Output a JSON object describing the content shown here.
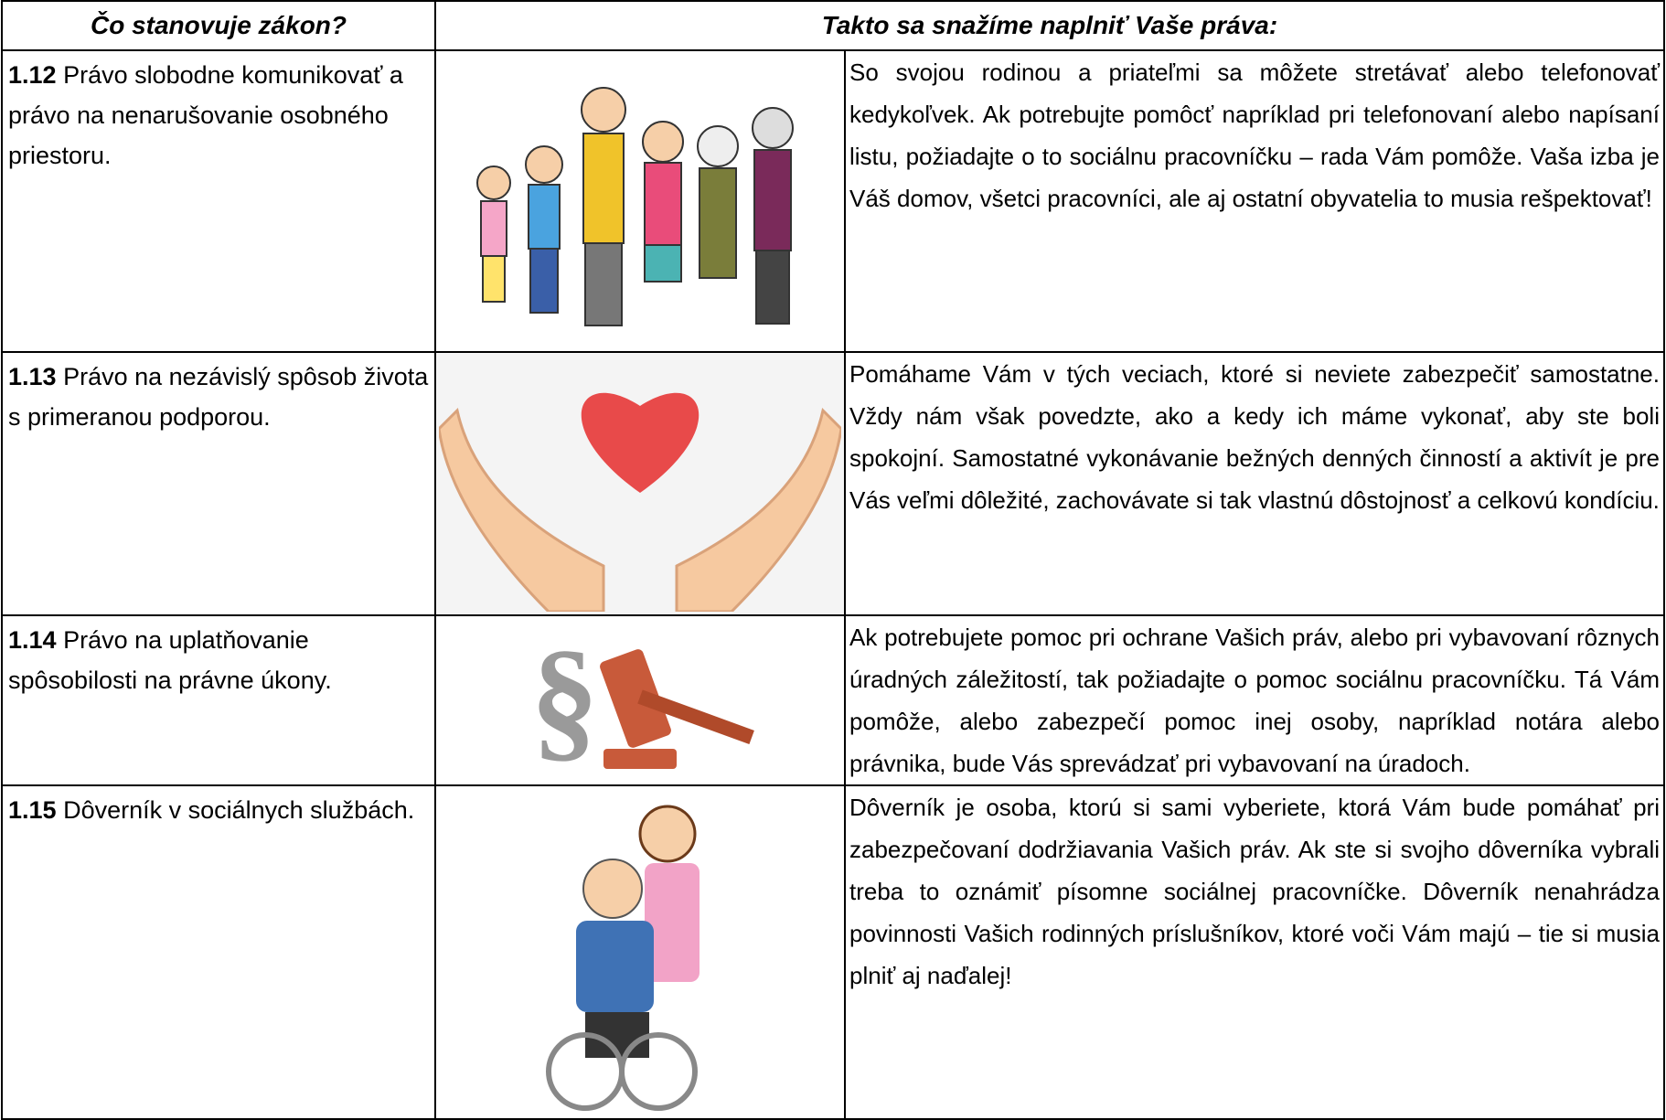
{
  "table": {
    "columns": [
      "Čo stanovuje zákon?",
      "Takto sa snažíme naplniť Vaše práva:"
    ],
    "rows": [
      {
        "number": "1.12",
        "right": "Právo slobodne komunikovať a právo na nenarušovanie osobného priestoru.",
        "description": "So svojou rodinou a priateľmi sa môžete stretávať alebo telefonovať kedykoľvek. Ak potrebujte pomôcť napríklad pri telefonovaní alebo napísaní listu, požiadajte o to sociálnu pracovníčku – rada Vám pomôže. Vaša izba je Váš domov, všetci pracovníci, ale aj ostatní obyvatelia to musia rešpektovať!"
      },
      {
        "number": "1.13",
        "right": "Právo na nezávislý spôsob života s primeranou podporou.",
        "description": "Pomáhame Vám v tých veciach, ktoré si neviete zabezpečiť samostatne. Vždy nám však povedzte, ako a kedy ich máme vykonať, aby ste boli spokojní. Samostatné vykonávanie bežných denných činností a aktivít je pre Vás veľmi dôležité, zachovávate si tak vlastnú dôstojnosť a celkovú kondíciu."
      },
      {
        "number": "1.14",
        "right": "Právo na uplatňovanie spôsobilosti na právne úkony.",
        "description": "Ak potrebujete pomoc pri ochrane Vašich práv, alebo pri vybavovaní rôznych úradných záležitostí, tak požiadajte o pomoc sociálnu pracovníčku. Tá Vám pomôže, alebo zabezpečí pomoc inej  osoby, napríklad notára alebo právnika, bude Vás sprevádzať pri vybavovaní na úradoch."
      },
      {
        "number": "1.15",
        "right": "Dôverník v sociálnych službách.",
        "description": "Dôverník je osoba, ktorú si sami vyberiete, ktorá Vám bude pomáhať pri zabezpečovaní dodržiavania Vašich práv. Ak ste si svojho dôverníka vybrali treba to oznámiť písomne sociálnej pracovníčke. Dôverník nenahrádza povinnosti Vašich rodinných príslušníkov, ktoré voči Vám majú – tie si musia plniť aj naďalej!"
      }
    ]
  }
}
